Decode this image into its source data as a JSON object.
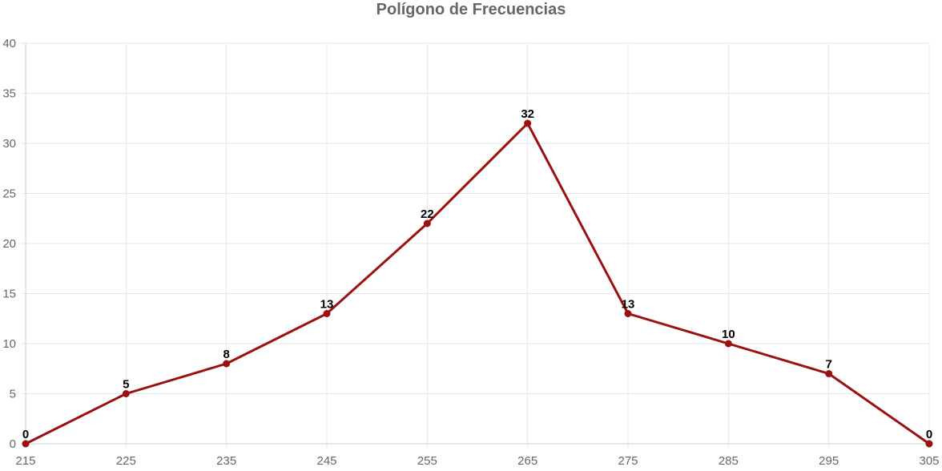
{
  "chart_data": {
    "type": "line",
    "title": "Polígono de Frecuencias",
    "x": [
      215,
      225,
      235,
      245,
      255,
      265,
      275,
      285,
      295,
      305
    ],
    "series": [
      {
        "values": [
          0,
          5,
          8,
          13,
          22,
          32,
          13,
          10,
          7,
          0
        ]
      }
    ],
    "xlim": [
      215,
      305
    ],
    "ylim": [
      0,
      40
    ],
    "y_ticks": [
      0,
      5,
      10,
      15,
      20,
      25,
      30,
      35,
      40
    ],
    "x_ticks": [
      215,
      225,
      235,
      245,
      255,
      265,
      275,
      285,
      295,
      305
    ],
    "grid": true,
    "data_labels": true,
    "line_color": "#9b1111",
    "grid_color": "#e6e6e6",
    "axis_color": "#cccccc"
  }
}
